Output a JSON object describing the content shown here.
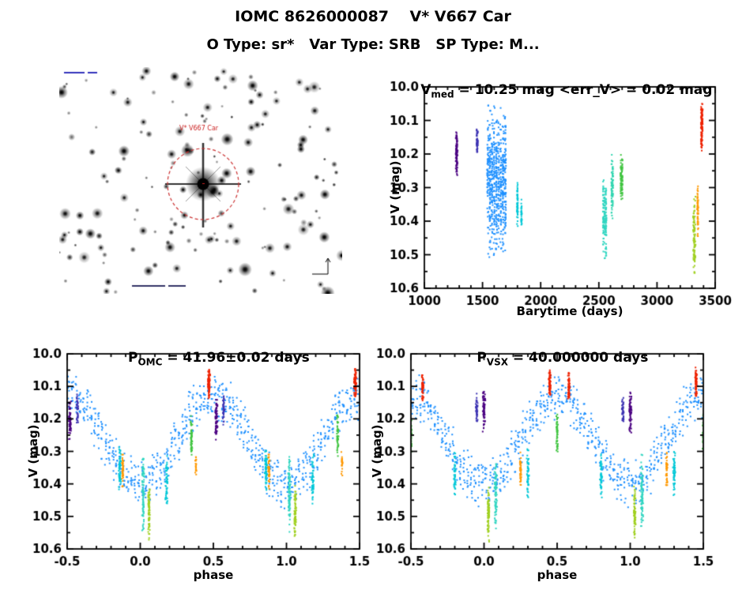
{
  "page": {
    "title": "IOMC 8626000087    V* V667 Car",
    "subtitle": "O Type: sr*   Var Type: SRB   SP Type: M..."
  },
  "finder": {
    "star_label": "V* V667 Car",
    "circle_color": "#cc3333",
    "label_color": "#cc2222",
    "n_stars": 160
  },
  "chart_data": [
    {
      "type": "scatter",
      "title": {
        "main": "V",
        "sub": "med",
        "rest": " = 10.25 mag <err_V> = 0.02 mag"
      },
      "v_med_mag": 10.25,
      "err_v_mag": 0.02,
      "xlabel": "Barytime (days)",
      "ylabel": "V (mag)",
      "xlim": [
        1000,
        3500
      ],
      "ylim": [
        10.0,
        10.6
      ],
      "y_inverted": true,
      "x_tick_vals": [
        1000,
        1500,
        2000,
        2500,
        3000,
        3500
      ],
      "x_tick_labels": [
        "1000",
        "1500",
        "2000",
        "2500",
        "3000",
        "3500"
      ],
      "y_tick_vals": [
        10.0,
        10.1,
        10.2,
        10.3,
        10.4,
        10.5,
        10.6
      ],
      "y_tick_labels": [
        "10.0",
        "10.1",
        "10.2",
        "10.3",
        "10.4",
        "10.5",
        "10.6"
      ],
      "x_minor": 100,
      "y_minor": 0.05,
      "clusters": [
        {
          "x": 1278,
          "w": 18,
          "v1": 10.13,
          "v2": 10.27,
          "n": 110,
          "color": "#4b0082"
        },
        {
          "x": 1455,
          "w": 14,
          "v1": 10.12,
          "v2": 10.21,
          "n": 55,
          "color": "#3d33b3"
        },
        {
          "x": 1620,
          "w": 170,
          "strips": 9,
          "v1": 10.05,
          "v2": 10.52,
          "n": 650,
          "color": "#1e90ff"
        },
        {
          "x": 1800,
          "w": 10,
          "v1": 10.28,
          "v2": 10.42,
          "n": 60,
          "color": "#00c8d7"
        },
        {
          "x": 1835,
          "w": 8,
          "v1": 10.33,
          "v2": 10.43,
          "n": 35,
          "color": "#00c8d7"
        },
        {
          "x": 2550,
          "w": 35,
          "strips": 3,
          "v1": 10.25,
          "v2": 10.52,
          "n": 150,
          "color": "#2fd5c0"
        },
        {
          "x": 2615,
          "w": 18,
          "strips": 2,
          "v1": 10.2,
          "v2": 10.4,
          "n": 80,
          "color": "#2fd5b0"
        },
        {
          "x": 2695,
          "w": 20,
          "strips": 2,
          "v1": 10.18,
          "v2": 10.35,
          "n": 80,
          "color": "#3fc43f"
        },
        {
          "x": 3320,
          "w": 25,
          "v1": 10.32,
          "v2": 10.58,
          "n": 100,
          "color": "#a0d020"
        },
        {
          "x": 3350,
          "w": 12,
          "v1": 10.28,
          "v2": 10.45,
          "n": 60,
          "color": "#ff9900"
        },
        {
          "x": 3385,
          "w": 18,
          "v1": 10.04,
          "v2": 10.2,
          "n": 120,
          "color": "#ee2200"
        }
      ]
    },
    {
      "type": "scatter",
      "title": {
        "main": "P",
        "sub": "OMC",
        "rest": " = 41.96±0.02 days"
      },
      "period_days": "41.96±0.02",
      "xlabel": "phase",
      "ylabel": "V (mag)",
      "xlim": [
        -0.5,
        1.5
      ],
      "ylim": [
        10.0,
        10.6
      ],
      "y_inverted": true,
      "x_tick_vals": [
        -0.5,
        0.0,
        0.5,
        1.0,
        1.5
      ],
      "x_tick_labels": [
        "-0.5",
        "0.0",
        "0.5",
        "1.0",
        "1.5"
      ],
      "y_tick_vals": [
        10.0,
        10.1,
        10.2,
        10.3,
        10.4,
        10.5,
        10.6
      ],
      "y_tick_labels": [
        "10.0",
        "10.1",
        "10.2",
        "10.3",
        "10.4",
        "10.5",
        "10.6"
      ],
      "x_minor": 0.1,
      "y_minor": 0.05,
      "backbone": {
        "color": "#1e90ff",
        "phase_step": 0.025,
        "per_strip": 10,
        "v_mean": 10.265,
        "v_amp": 0.135,
        "v_scatter": 0.08
      },
      "clusters": [
        {
          "x": 0.52,
          "w": 0.02,
          "v1": 10.13,
          "v2": 10.27,
          "n": 70,
          "color": "#4b0082"
        },
        {
          "x": 0.57,
          "w": 0.015,
          "v1": 10.12,
          "v2": 10.22,
          "n": 45,
          "color": "#3d33b3"
        },
        {
          "x": 0.47,
          "w": 0.018,
          "v1": 10.04,
          "v2": 10.14,
          "n": 80,
          "color": "#ee2200"
        },
        {
          "x": 0.18,
          "w": 0.02,
          "v1": 10.3,
          "v2": 10.48,
          "n": 55,
          "color": "#00c8d7"
        },
        {
          "x": 0.86,
          "w": 0.018,
          "v1": 10.28,
          "v2": 10.43,
          "n": 60,
          "color": "#00c8d7"
        },
        {
          "x": 0.02,
          "w": 0.02,
          "v1": 10.3,
          "v2": 10.55,
          "n": 90,
          "color": "#2fd5c0"
        },
        {
          "x": 0.35,
          "w": 0.015,
          "v1": 10.18,
          "v2": 10.33,
          "n": 50,
          "color": "#3fc43f"
        },
        {
          "x": 0.06,
          "w": 0.015,
          "v1": 10.4,
          "v2": 10.58,
          "n": 80,
          "color": "#a0d020"
        },
        {
          "x": 0.88,
          "w": 0.012,
          "v1": 10.3,
          "v2": 10.42,
          "n": 45,
          "color": "#ff9900"
        },
        {
          "x": 0.38,
          "w": 0.01,
          "v1": 10.3,
          "v2": 10.38,
          "n": 22,
          "color": "#ff9900"
        }
      ]
    },
    {
      "type": "scatter",
      "title": {
        "main": "P",
        "sub": "VSX",
        "rest": " = 40.000000 days"
      },
      "period_days": "40.000000",
      "xlabel": "phase",
      "ylabel": "V (mag)",
      "xlim": [
        -0.5,
        1.5
      ],
      "ylim": [
        10.0,
        10.6
      ],
      "y_inverted": true,
      "x_tick_vals": [
        -0.5,
        0.0,
        0.5,
        1.0,
        1.5
      ],
      "x_tick_labels": [
        "-0.5",
        "0.0",
        "0.5",
        "1.0",
        "1.5"
      ],
      "y_tick_vals": [
        10.0,
        10.1,
        10.2,
        10.3,
        10.4,
        10.5,
        10.6
      ],
      "y_tick_labels": [
        "10.0",
        "10.1",
        "10.2",
        "10.3",
        "10.4",
        "10.5",
        "10.6"
      ],
      "x_minor": 0.1,
      "y_minor": 0.05,
      "backbone": {
        "color": "#1e90ff",
        "phase_step": 0.025,
        "per_strip": 10,
        "v_mean": 10.265,
        "v_amp": 0.135,
        "v_scatter": 0.08
      },
      "clusters": [
        {
          "x": 0.0,
          "w": 0.02,
          "v1": 10.1,
          "v2": 10.25,
          "n": 70,
          "color": "#4b0082"
        },
        {
          "x": 0.95,
          "w": 0.015,
          "v1": 10.12,
          "v2": 10.22,
          "n": 45,
          "color": "#3d33b3"
        },
        {
          "x": 0.45,
          "w": 0.015,
          "v1": 10.04,
          "v2": 10.14,
          "n": 65,
          "color": "#ee2200"
        },
        {
          "x": 0.58,
          "w": 0.015,
          "v1": 10.05,
          "v2": 10.15,
          "n": 55,
          "color": "#ee2200"
        },
        {
          "x": 0.3,
          "w": 0.02,
          "v1": 10.28,
          "v2": 10.45,
          "n": 55,
          "color": "#00c8d7"
        },
        {
          "x": 0.8,
          "w": 0.018,
          "v1": 10.3,
          "v2": 10.45,
          "n": 50,
          "color": "#00c8d7"
        },
        {
          "x": 0.08,
          "w": 0.02,
          "v1": 10.3,
          "v2": 10.55,
          "n": 85,
          "color": "#2fd5c0"
        },
        {
          "x": 0.5,
          "w": 0.015,
          "v1": 10.18,
          "v2": 10.32,
          "n": 50,
          "color": "#3fc43f"
        },
        {
          "x": 0.03,
          "w": 0.015,
          "v1": 10.4,
          "v2": 10.58,
          "n": 80,
          "color": "#a0d020"
        },
        {
          "x": 0.25,
          "w": 0.012,
          "v1": 10.3,
          "v2": 10.42,
          "n": 45,
          "color": "#ff9900"
        }
      ]
    }
  ]
}
